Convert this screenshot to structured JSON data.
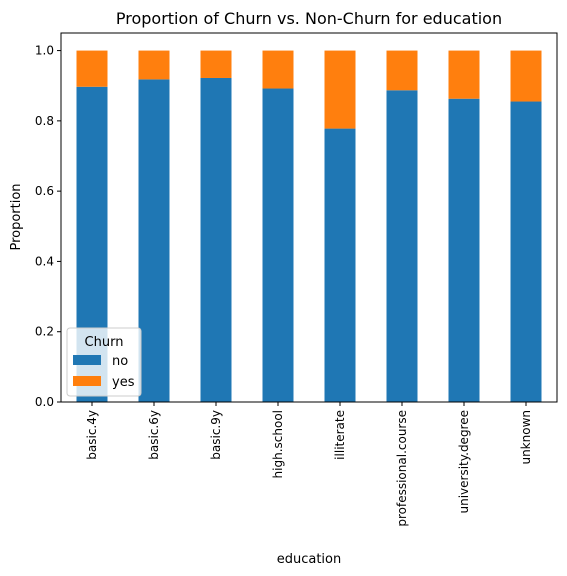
{
  "chart_data": {
    "type": "bar",
    "stacked": true,
    "title": "Proportion of Churn vs. Non-Churn for education",
    "xlabel": "education",
    "ylabel": "Proportion",
    "ylim": [
      0,
      1.05
    ],
    "yticks": [
      "0.0",
      "0.2",
      "0.4",
      "0.6",
      "0.8",
      "1.0"
    ],
    "categories": [
      "basic.4y",
      "basic.6y",
      "basic.9y",
      "high.school",
      "illiterate",
      "professional.course",
      "university.degree",
      "unknown"
    ],
    "series": [
      {
        "name": "no",
        "color": "#1f77b4",
        "values": [
          0.897,
          0.918,
          0.922,
          0.892,
          0.778,
          0.887,
          0.863,
          0.855
        ]
      },
      {
        "name": "yes",
        "color": "#ff7f0e",
        "values": [
          0.103,
          0.082,
          0.078,
          0.108,
          0.222,
          0.113,
          0.137,
          0.145
        ]
      }
    ],
    "legend": {
      "title": "Churn",
      "position": "lower-left"
    },
    "grid": false
  }
}
